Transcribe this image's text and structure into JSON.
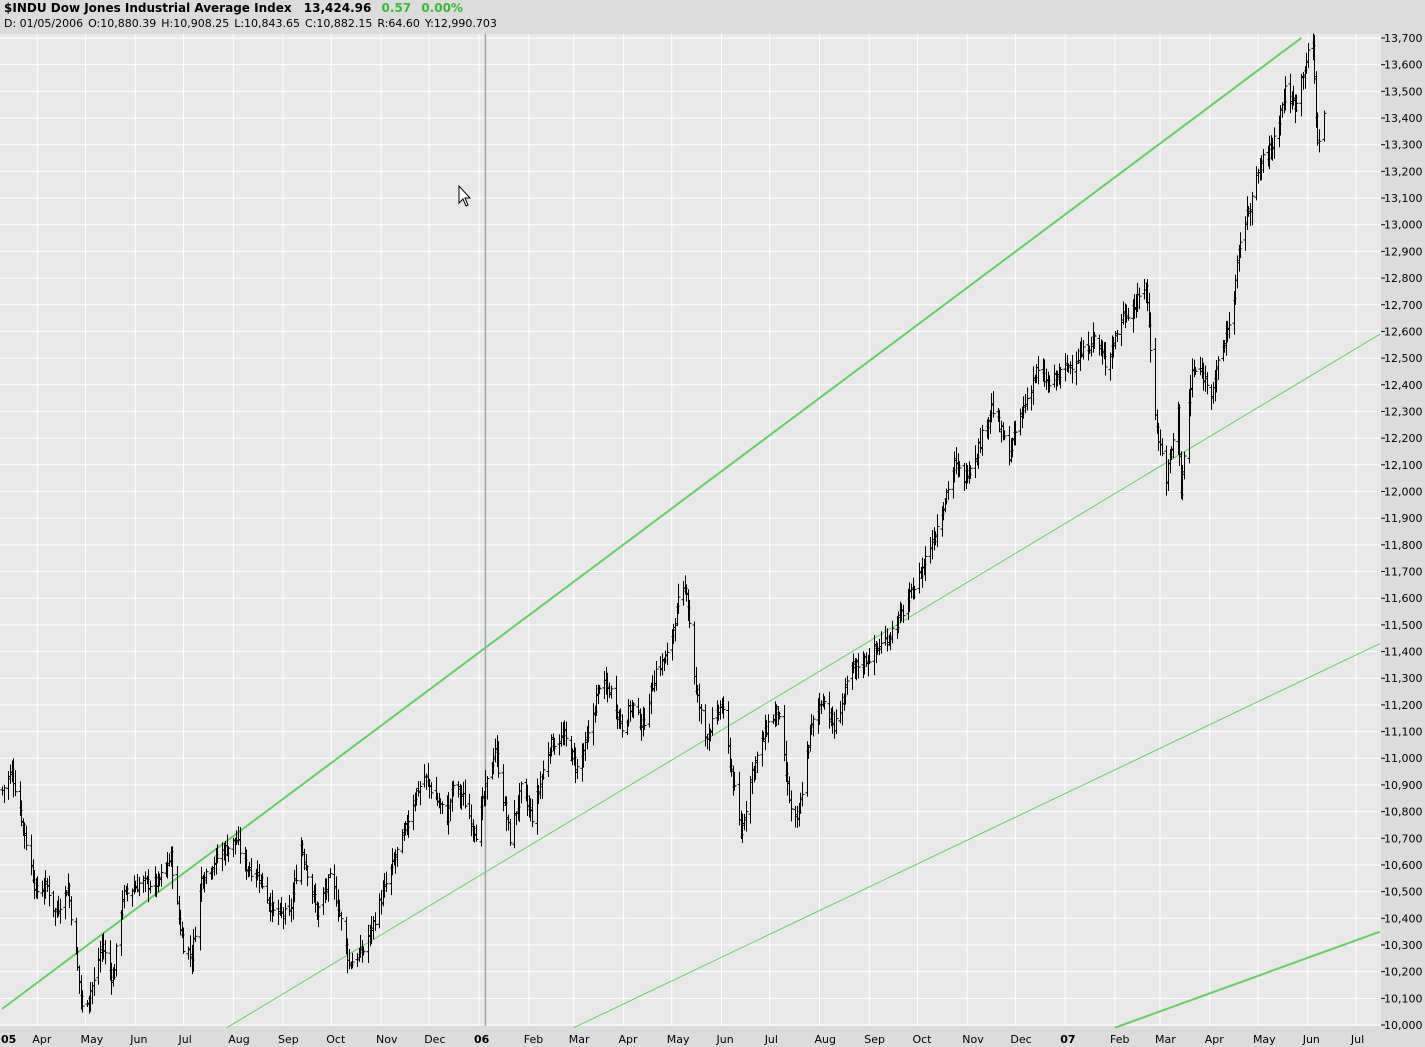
{
  "header": {
    "symbol_title": "$INDU Dow Jones Industrial Average Index",
    "last": "13,424.96",
    "change": "0.57",
    "change_pct": "0.00%",
    "date": "D: 01/05/2006",
    "open": "O:10,880.39",
    "high": "H:10,908.25",
    "low": "L:10,843.65",
    "close": "C:10,882.15",
    "range": "R:64.60",
    "y_readout": "Y:12,990.703"
  },
  "colors": {
    "background": "#e8e8e8",
    "grid": "#ffffff",
    "bars": "#000000",
    "trendline": "#5fd35f",
    "change_text": "#2fbf2f",
    "crosshair": "#9aa8b8"
  },
  "chart_data": {
    "type": "ohlc",
    "ylim": [
      10000,
      13700
    ],
    "y_ticks": [
      10000,
      10100,
      10200,
      10300,
      10400,
      10500,
      10600,
      10700,
      10800,
      10900,
      11000,
      11100,
      11200,
      11300,
      11400,
      11500,
      11600,
      11700,
      11800,
      11900,
      12000,
      12100,
      12200,
      12300,
      12400,
      12500,
      12600,
      12700,
      12800,
      12900,
      13000,
      13100,
      13200,
      13300,
      13400,
      13500,
      13600,
      13700
    ],
    "y_tick_labels": [
      "10,000",
      "10,100",
      "10,200",
      "10,300",
      "10,400",
      "10,500",
      "10,600",
      "10,700",
      "10,800",
      "10,900",
      "11,000",
      "11,100",
      "11,200",
      "11,300",
      "11,400",
      "11,500",
      "11,600",
      "11,700",
      "11,800",
      "11,900",
      "12,000",
      "12,100",
      "12,200",
      "12,300",
      "12,400",
      "12,500",
      "12,600",
      "12,700",
      "12,800",
      "12,900",
      "13,000",
      "13,100",
      "13,200",
      "13,300",
      "13,400",
      "13,500",
      "13,600",
      "13,700"
    ],
    "x_range": [
      "2005-03-10",
      "2007-07-16"
    ],
    "x_ticks": [
      {
        "label": "05",
        "date": "2005-03-01",
        "year": true
      },
      {
        "label": "Apr",
        "date": "2005-04-01"
      },
      {
        "label": "May",
        "date": "2005-05-01"
      },
      {
        "label": "Jun",
        "date": "2005-06-01"
      },
      {
        "label": "Jul",
        "date": "2005-07-01"
      },
      {
        "label": "Aug",
        "date": "2005-08-01"
      },
      {
        "label": "Sep",
        "date": "2005-09-01"
      },
      {
        "label": "Oct",
        "date": "2005-10-01"
      },
      {
        "label": "Nov",
        "date": "2005-11-01"
      },
      {
        "label": "Dec",
        "date": "2005-12-01"
      },
      {
        "label": "06",
        "date": "2006-01-01",
        "year": true
      },
      {
        "label": "Feb",
        "date": "2006-02-01"
      },
      {
        "label": "Mar",
        "date": "2006-03-01"
      },
      {
        "label": "Apr",
        "date": "2006-04-01"
      },
      {
        "label": "May",
        "date": "2006-05-01"
      },
      {
        "label": "Jun",
        "date": "2006-06-01"
      },
      {
        "label": "Jul",
        "date": "2006-07-01"
      },
      {
        "label": "Aug",
        "date": "2006-08-01"
      },
      {
        "label": "Sep",
        "date": "2006-09-01"
      },
      {
        "label": "Oct",
        "date": "2006-10-01"
      },
      {
        "label": "Nov",
        "date": "2006-11-01"
      },
      {
        "label": "Dec",
        "date": "2006-12-01"
      },
      {
        "label": "07",
        "date": "2007-01-01",
        "year": true
      },
      {
        "label": "Feb",
        "date": "2007-02-01"
      },
      {
        "label": "Mar",
        "date": "2007-03-01"
      },
      {
        "label": "Apr",
        "date": "2007-04-01"
      },
      {
        "label": "May",
        "date": "2007-05-01"
      },
      {
        "label": "Jun",
        "date": "2007-06-01"
      },
      {
        "label": "Jul",
        "date": "2007-07-01"
      }
    ],
    "price_path": [
      {
        "date": "2005-03-10",
        "value": 10880
      },
      {
        "date": "2005-03-16",
        "value": 10950
      },
      {
        "date": "2005-03-22",
        "value": 10780
      },
      {
        "date": "2005-03-31",
        "value": 10500
      },
      {
        "date": "2005-04-07",
        "value": 10520
      },
      {
        "date": "2005-04-12",
        "value": 10420
      },
      {
        "date": "2005-04-20",
        "value": 10520
      },
      {
        "date": "2005-04-25",
        "value": 10260
      },
      {
        "date": "2005-04-29",
        "value": 10060
      },
      {
        "date": "2005-05-06",
        "value": 10160
      },
      {
        "date": "2005-05-11",
        "value": 10300
      },
      {
        "date": "2005-05-18",
        "value": 10170
      },
      {
        "date": "2005-05-24",
        "value": 10480
      },
      {
        "date": "2005-06-03",
        "value": 10530
      },
      {
        "date": "2005-06-15",
        "value": 10530
      },
      {
        "date": "2005-06-23",
        "value": 10630
      },
      {
        "date": "2005-06-28",
        "value": 10400
      },
      {
        "date": "2005-07-01",
        "value": 10300
      },
      {
        "date": "2005-07-06",
        "value": 10260
      },
      {
        "date": "2005-07-12",
        "value": 10550
      },
      {
        "date": "2005-07-25",
        "value": 10650
      },
      {
        "date": "2005-08-03",
        "value": 10690
      },
      {
        "date": "2005-08-08",
        "value": 10600
      },
      {
        "date": "2005-08-17",
        "value": 10560
      },
      {
        "date": "2005-08-26",
        "value": 10420
      },
      {
        "date": "2005-09-05",
        "value": 10410
      },
      {
        "date": "2005-09-12",
        "value": 10680
      },
      {
        "date": "2005-09-22",
        "value": 10420
      },
      {
        "date": "2005-10-01",
        "value": 10560
      },
      {
        "date": "2005-10-05",
        "value": 10450
      },
      {
        "date": "2005-10-12",
        "value": 10230
      },
      {
        "date": "2005-10-21",
        "value": 10280
      },
      {
        "date": "2005-10-28",
        "value": 10400
      },
      {
        "date": "2005-11-07",
        "value": 10580
      },
      {
        "date": "2005-11-16",
        "value": 10730
      },
      {
        "date": "2005-11-22",
        "value": 10860
      },
      {
        "date": "2005-11-28",
        "value": 10930
      },
      {
        "date": "2005-12-05",
        "value": 10850
      },
      {
        "date": "2005-12-12",
        "value": 10780
      },
      {
        "date": "2005-12-16",
        "value": 10900
      },
      {
        "date": "2005-12-22",
        "value": 10850
      },
      {
        "date": "2005-12-30",
        "value": 10720
      },
      {
        "date": "2006-01-05",
        "value": 10880
      },
      {
        "date": "2006-01-11",
        "value": 11040
      },
      {
        "date": "2006-01-20",
        "value": 10700
      },
      {
        "date": "2006-01-27",
        "value": 10880
      },
      {
        "date": "2006-02-03",
        "value": 10780
      },
      {
        "date": "2006-02-14",
        "value": 11050
      },
      {
        "date": "2006-02-23",
        "value": 11080
      },
      {
        "date": "2006-03-03",
        "value": 10960
      },
      {
        "date": "2006-03-10",
        "value": 11080
      },
      {
        "date": "2006-03-17",
        "value": 11280
      },
      {
        "date": "2006-03-24",
        "value": 11250
      },
      {
        "date": "2006-03-31",
        "value": 11120
      },
      {
        "date": "2006-04-06",
        "value": 11200
      },
      {
        "date": "2006-04-13",
        "value": 11120
      },
      {
        "date": "2006-04-21",
        "value": 11330
      },
      {
        "date": "2006-04-28",
        "value": 11380
      },
      {
        "date": "2006-05-05",
        "value": 11580
      },
      {
        "date": "2006-05-10",
        "value": 11640
      },
      {
        "date": "2006-05-16",
        "value": 11250
      },
      {
        "date": "2006-05-22",
        "value": 11080
      },
      {
        "date": "2006-06-01",
        "value": 11200
      },
      {
        "date": "2006-06-07",
        "value": 10950
      },
      {
        "date": "2006-06-13",
        "value": 10720
      },
      {
        "date": "2006-06-20",
        "value": 10950
      },
      {
        "date": "2006-06-30",
        "value": 11130
      },
      {
        "date": "2006-07-06",
        "value": 11180
      },
      {
        "date": "2006-07-14",
        "value": 10800
      },
      {
        "date": "2006-07-18",
        "value": 10750
      },
      {
        "date": "2006-07-26",
        "value": 11100
      },
      {
        "date": "2006-08-03",
        "value": 11230
      },
      {
        "date": "2006-08-10",
        "value": 11110
      },
      {
        "date": "2006-08-21",
        "value": 11330
      },
      {
        "date": "2006-09-01",
        "value": 11380
      },
      {
        "date": "2006-09-12",
        "value": 11450
      },
      {
        "date": "2006-09-22",
        "value": 11550
      },
      {
        "date": "2006-10-02",
        "value": 11680
      },
      {
        "date": "2006-10-12",
        "value": 11850
      },
      {
        "date": "2006-10-24",
        "value": 12100
      },
      {
        "date": "2006-10-30",
        "value": 12050
      },
      {
        "date": "2006-11-07",
        "value": 12150
      },
      {
        "date": "2006-11-16",
        "value": 12320
      },
      {
        "date": "2006-11-27",
        "value": 12140
      },
      {
        "date": "2006-12-04",
        "value": 12280
      },
      {
        "date": "2006-12-14",
        "value": 12450
      },
      {
        "date": "2006-12-22",
        "value": 12400
      },
      {
        "date": "2007-01-03",
        "value": 12470
      },
      {
        "date": "2007-01-12",
        "value": 12520
      },
      {
        "date": "2007-01-19",
        "value": 12580
      },
      {
        "date": "2007-01-26",
        "value": 12480
      },
      {
        "date": "2007-02-06",
        "value": 12660
      },
      {
        "date": "2007-02-14",
        "value": 12700
      },
      {
        "date": "2007-02-20",
        "value": 12780
      },
      {
        "date": "2007-02-27",
        "value": 12230
      },
      {
        "date": "2007-03-05",
        "value": 12050
      },
      {
        "date": "2007-03-12",
        "value": 12300
      },
      {
        "date": "2007-03-14",
        "value": 12000
      },
      {
        "date": "2007-03-21",
        "value": 12450
      },
      {
        "date": "2007-03-26",
        "value": 12450
      },
      {
        "date": "2007-04-02",
        "value": 12380
      },
      {
        "date": "2007-04-10",
        "value": 12560
      },
      {
        "date": "2007-04-16",
        "value": 12720
      },
      {
        "date": "2007-04-20",
        "value": 12950
      },
      {
        "date": "2007-04-26",
        "value": 13080
      },
      {
        "date": "2007-05-03",
        "value": 13230
      },
      {
        "date": "2007-05-10",
        "value": 13300
      },
      {
        "date": "2007-05-18",
        "value": 13500
      },
      {
        "date": "2007-05-24",
        "value": 13450
      },
      {
        "date": "2007-05-31",
        "value": 13620
      },
      {
        "date": "2007-06-04",
        "value": 13670
      },
      {
        "date": "2007-06-07",
        "value": 13300
      },
      {
        "date": "2007-06-11",
        "value": 13420
      }
    ],
    "trendlines": [
      {
        "from": {
          "date": "2005-03-10",
          "value": 10060
        },
        "to": {
          "date": "2007-05-28",
          "value": 13700
        },
        "weight": "bold"
      },
      {
        "from": {
          "date": "2005-07-28",
          "value": 9990
        },
        "to": {
          "date": "2007-07-16",
          "value": 12590
        },
        "weight": "thin"
      },
      {
        "from": {
          "date": "2006-03-01",
          "value": 9990
        },
        "to": {
          "date": "2007-07-16",
          "value": 11430
        },
        "weight": "thin"
      },
      {
        "from": {
          "date": "2007-02-01",
          "value": 9990
        },
        "to": {
          "date": "2007-07-16",
          "value": 10350
        },
        "weight": "bold"
      }
    ],
    "crosshair_date": "2006-01-05",
    "grid": true
  }
}
